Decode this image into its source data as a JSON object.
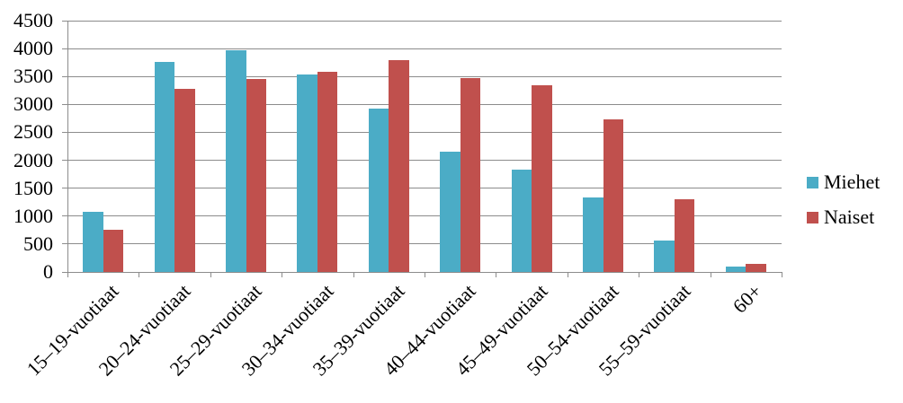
{
  "chart_data": {
    "type": "bar",
    "title": "",
    "xlabel": "",
    "ylabel": "",
    "categories": [
      "15–19-vuotiaat",
      "20–24-vuotiaat",
      "25–29-vuotiaat",
      "30–34-vuotiaat",
      "35–39-vuotiaat",
      "40–44-vuotiaat",
      "45–49-vuotiaat",
      "50–54-vuotiaat",
      "55–59-vuotiaat",
      "60+"
    ],
    "series": [
      {
        "name": "Miehet",
        "color": "#4BACC6",
        "values": [
          1070,
          3760,
          3970,
          3530,
          2920,
          2160,
          1830,
          1330,
          570,
          90
        ]
      },
      {
        "name": "Naiset",
        "color": "#C0504D",
        "values": [
          750,
          3280,
          3460,
          3580,
          3790,
          3470,
          3350,
          2740,
          1300,
          150
        ]
      }
    ],
    "ylim": [
      0,
      4500
    ],
    "ytick_step": 500,
    "ytick_labels": [
      "0",
      "500",
      "1000",
      "1500",
      "2000",
      "2500",
      "3000",
      "3500",
      "4000",
      "4500"
    ],
    "grid": true,
    "legend_position": "right",
    "gridline_color": "#8C8C8C",
    "axis_color": "#8C8C8C",
    "text_color": "#000000",
    "background": "#FFFFFF"
  }
}
